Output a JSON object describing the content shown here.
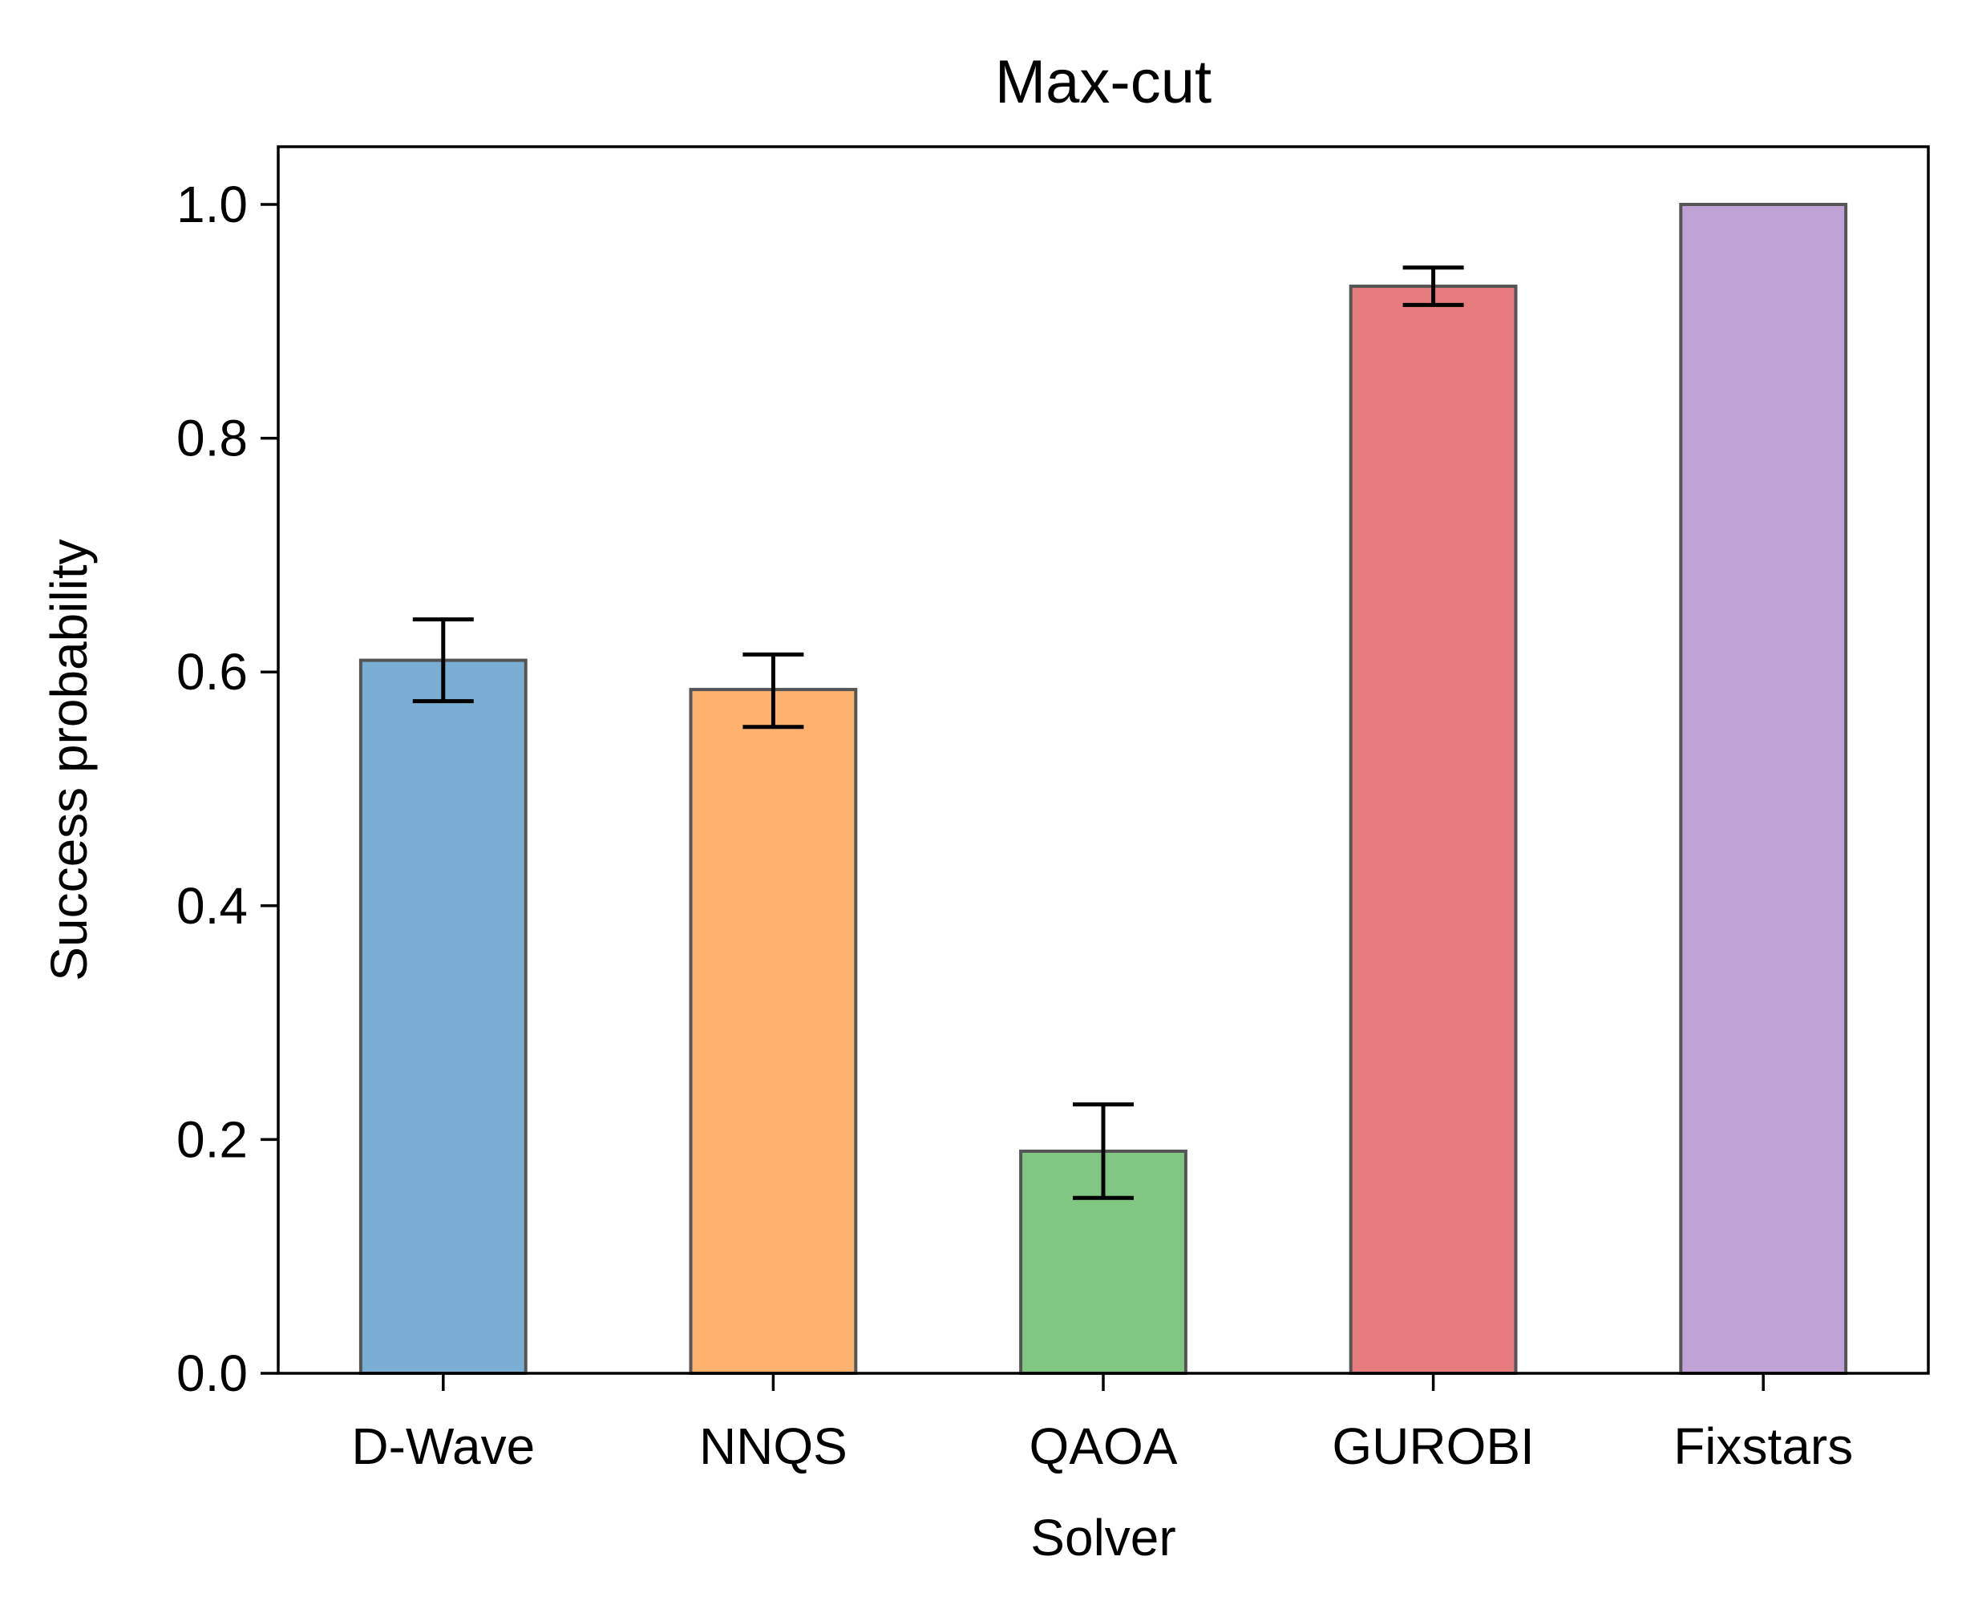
{
  "chart_data": {
    "type": "bar",
    "title": "Max-cut",
    "xlabel": "Solver",
    "ylabel": "Success probability",
    "categories": [
      "D-Wave",
      "NNQS",
      "QAOA",
      "GUROBI",
      "Fixstars"
    ],
    "values": [
      0.61,
      0.585,
      0.19,
      0.93,
      1.0
    ],
    "error_low": [
      0.575,
      0.553,
      0.15,
      0.914,
      1.0
    ],
    "error_high": [
      0.645,
      0.615,
      0.23,
      0.946,
      1.0
    ],
    "ylim": [
      0,
      1.05
    ],
    "yticks": [
      "0.0",
      "0.2",
      "0.4",
      "0.6",
      "0.8",
      "1.0"
    ],
    "ytick_values": [
      0,
      0.2,
      0.4,
      0.6,
      0.8,
      1.0
    ],
    "bar_colors": [
      "#7aaed3",
      "#feb26e",
      "#81c784",
      "#e67c7e",
      "#bfa3d6"
    ],
    "bar_edge_color": "#555555",
    "error_bar_color": "#000000",
    "grid": false,
    "legend": "none"
  }
}
